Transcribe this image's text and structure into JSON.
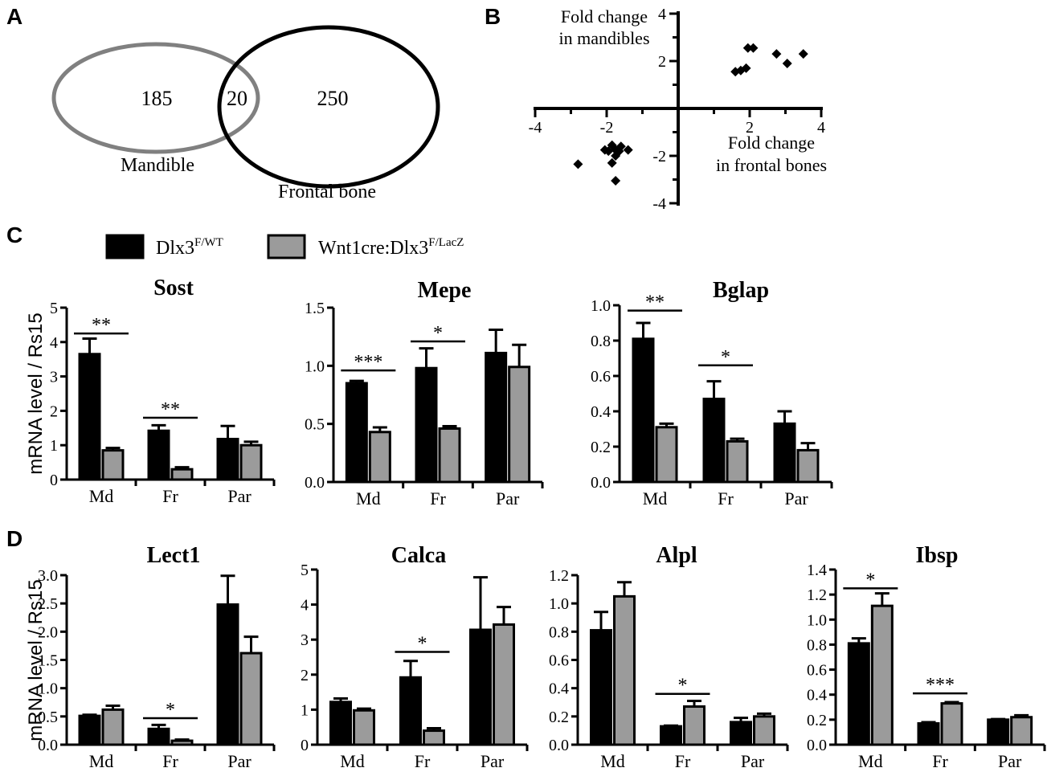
{
  "panels": {
    "A": {
      "letter": "A",
      "venn": {
        "left_set_label": "Mandible",
        "right_set_label": "Frontal bone",
        "left_only_count": "185",
        "overlap_count": "20",
        "right_only_count": "250",
        "left_color": "#808080",
        "right_color": "#000000"
      }
    },
    "B": {
      "letter": "B",
      "y_caption": [
        "Fold change",
        "in mandibles"
      ],
      "x_caption": [
        "Fold change",
        "in frontal bones"
      ]
    },
    "C": {
      "letter": "C"
    },
    "D": {
      "letter": "D"
    }
  },
  "legend": [
    {
      "label": "Dlx3",
      "sup": "F/WT",
      "color": "#000000"
    },
    {
      "label": "Wnt1cre:Dlx3",
      "sup": "F/LacZ",
      "color": "#9b9b9b"
    }
  ],
  "ylabel_shared": "mRNA level / Rs15",
  "chart_data": [
    {
      "type": "scatter",
      "panel": "B",
      "xlim": [
        -4,
        4
      ],
      "ylim": [
        -4,
        4
      ],
      "x_ticks": [
        -4,
        -2,
        2,
        4
      ],
      "y_ticks": [
        4,
        2,
        -2,
        -4
      ],
      "points": [
        {
          "x": 1.6,
          "y": 1.55
        },
        {
          "x": 1.75,
          "y": 1.6
        },
        {
          "x": 1.9,
          "y": 1.7
        },
        {
          "x": 1.95,
          "y": 2.55
        },
        {
          "x": 2.1,
          "y": 2.55
        },
        {
          "x": 2.75,
          "y": 2.3
        },
        {
          "x": 3.05,
          "y": 1.9
        },
        {
          "x": 3.5,
          "y": 2.3
        },
        {
          "x": -2.8,
          "y": -2.35
        },
        {
          "x": -2.05,
          "y": -1.75
        },
        {
          "x": -1.95,
          "y": -1.8
        },
        {
          "x": -1.85,
          "y": -1.55
        },
        {
          "x": -1.75,
          "y": -1.75
        },
        {
          "x": -1.65,
          "y": -1.8
        },
        {
          "x": -1.6,
          "y": -1.6
        },
        {
          "x": -1.75,
          "y": -2.0
        },
        {
          "x": -1.85,
          "y": -2.3
        },
        {
          "x": -1.4,
          "y": -1.75
        },
        {
          "x": -1.75,
          "y": -3.05
        }
      ]
    },
    {
      "type": "bar",
      "panel": "C",
      "title": "Sost",
      "categories": [
        "Md",
        "Fr",
        "Par"
      ],
      "ylim": [
        0,
        5
      ],
      "ticks": [
        "0",
        "1",
        "2",
        "3",
        "4",
        "5"
      ],
      "series": [
        {
          "values": [
            3.65,
            1.42,
            1.18
          ],
          "errors": [
            0.45,
            0.16,
            0.38
          ],
          "color": "#000000"
        },
        {
          "values": [
            0.85,
            0.3,
            1.0
          ],
          "errors": [
            0.07,
            0.06,
            0.1
          ],
          "color": "#9b9b9b"
        }
      ],
      "significance": [
        {
          "category": "Md",
          "label": "**",
          "y": 4.25
        },
        {
          "category": "Fr",
          "label": "**",
          "y": 1.8
        }
      ]
    },
    {
      "type": "bar",
      "panel": "C",
      "title": "Mepe",
      "categories": [
        "Md",
        "Fr",
        "Par"
      ],
      "ylim": [
        0,
        1.5
      ],
      "ticks": [
        "0.0",
        "0.5",
        "1.0",
        "1.5"
      ],
      "series": [
        {
          "values": [
            0.85,
            0.98,
            1.11
          ],
          "errors": [
            0.02,
            0.17,
            0.2
          ],
          "color": "#000000"
        },
        {
          "values": [
            0.43,
            0.46,
            0.99
          ],
          "errors": [
            0.04,
            0.02,
            0.19
          ],
          "color": "#9b9b9b"
        }
      ],
      "significance": [
        {
          "category": "Md",
          "label": "***",
          "y": 0.96
        },
        {
          "category": "Fr",
          "label": "*",
          "y": 1.21
        }
      ]
    },
    {
      "type": "bar",
      "panel": "C",
      "title": "Bglap",
      "categories": [
        "Md",
        "Fr",
        "Par"
      ],
      "ylim": [
        0,
        1.0
      ],
      "ticks": [
        "0.0",
        "0.2",
        "0.4",
        "0.6",
        "0.8",
        "1.0"
      ],
      "series": [
        {
          "values": [
            0.81,
            0.47,
            0.33
          ],
          "errors": [
            0.09,
            0.1,
            0.07
          ],
          "color": "#000000"
        },
        {
          "values": [
            0.31,
            0.23,
            0.18
          ],
          "errors": [
            0.02,
            0.015,
            0.04
          ],
          "color": "#9b9b9b"
        }
      ],
      "significance": [
        {
          "category": "Md",
          "label": "**",
          "y": 0.97
        },
        {
          "category": "Fr",
          "label": "*",
          "y": 0.66
        }
      ]
    },
    {
      "type": "bar",
      "panel": "D",
      "title": "Lect1",
      "categories": [
        "Md",
        "Fr",
        "Par"
      ],
      "ylim": [
        0,
        3.0
      ],
      "ticks": [
        "0.0",
        "0.5",
        "1.0",
        "1.5",
        "2.0",
        "2.5",
        "3.0"
      ],
      "series": [
        {
          "values": [
            0.51,
            0.28,
            2.48
          ],
          "errors": [
            0.02,
            0.07,
            0.51
          ],
          "color": "#000000"
        },
        {
          "values": [
            0.62,
            0.07,
            1.62
          ],
          "errors": [
            0.07,
            0.02,
            0.29
          ],
          "color": "#9b9b9b"
        }
      ],
      "significance": [
        {
          "category": "Fr",
          "label": "*",
          "y": 0.47
        }
      ]
    },
    {
      "type": "bar",
      "panel": "D",
      "title": "Calca",
      "categories": [
        "Md",
        "Fr",
        "Par"
      ],
      "ylim": [
        0,
        5
      ],
      "ticks": [
        "0",
        "1",
        "2",
        "3",
        "4",
        "5"
      ],
      "series": [
        {
          "values": [
            1.22,
            1.92,
            3.28
          ],
          "errors": [
            0.1,
            0.47,
            1.5
          ],
          "color": "#000000"
        },
        {
          "values": [
            0.98,
            0.4,
            3.43
          ],
          "errors": [
            0.05,
            0.07,
            0.5
          ],
          "color": "#9b9b9b"
        }
      ],
      "significance": [
        {
          "category": "Fr",
          "label": "*",
          "y": 2.65
        }
      ]
    },
    {
      "type": "bar",
      "panel": "D",
      "title": "Alpl",
      "categories": [
        "Md",
        "Fr",
        "Par"
      ],
      "ylim": [
        0,
        1.2
      ],
      "ticks": [
        "0.0",
        "0.2",
        "0.4",
        "0.6",
        "0.8",
        "1.0",
        "1.2"
      ],
      "series": [
        {
          "values": [
            0.81,
            0.13,
            0.16
          ],
          "errors": [
            0.13,
            0.005,
            0.03
          ],
          "color": "#000000"
        },
        {
          "values": [
            1.05,
            0.27,
            0.2
          ],
          "errors": [
            0.1,
            0.04,
            0.02
          ],
          "color": "#9b9b9b"
        }
      ],
      "significance": [
        {
          "category": "Fr",
          "label": "*",
          "y": 0.36
        }
      ]
    },
    {
      "type": "bar",
      "panel": "D",
      "title": "Ibsp",
      "categories": [
        "Md",
        "Fr",
        "Par"
      ],
      "ylim": [
        0,
        1.4
      ],
      "ticks": [
        "0.0",
        "0.2",
        "0.4",
        "0.6",
        "0.8",
        "1.0",
        "1.2",
        "1.4"
      ],
      "series": [
        {
          "values": [
            0.81,
            0.17,
            0.2
          ],
          "errors": [
            0.04,
            0.01,
            0.005
          ],
          "color": "#000000"
        },
        {
          "values": [
            1.11,
            0.33,
            0.22
          ],
          "errors": [
            0.1,
            0.01,
            0.015
          ],
          "color": "#9b9b9b"
        }
      ],
      "significance": [
        {
          "category": "Md",
          "label": "*",
          "y": 1.25
        },
        {
          "category": "Fr",
          "label": "***",
          "y": 0.41
        }
      ]
    }
  ]
}
